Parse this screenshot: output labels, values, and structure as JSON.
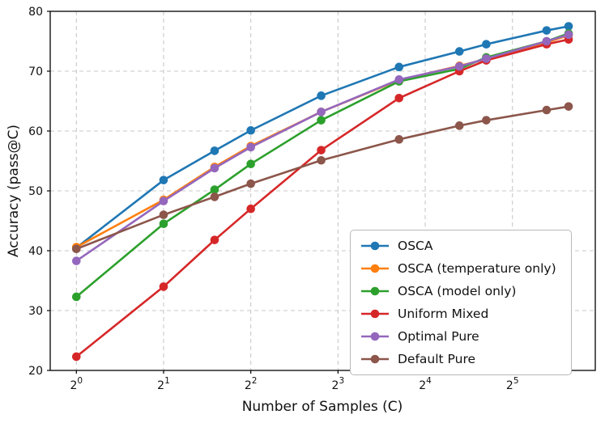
{
  "chart_data": {
    "type": "line",
    "title": "",
    "xlabel": "Number of Samples (C)",
    "ylabel": "Accuracy (pass@C)",
    "x_scale": "log2",
    "x_tick_base": "2",
    "xticks_exp": [
      0,
      1,
      2,
      3,
      4,
      5
    ],
    "x_log2": [
      0,
      1,
      1.585,
      2,
      2.807,
      3.7,
      4.392,
      4.7,
      5.392,
      5.644
    ],
    "x_values_approx": [
      1,
      2,
      3,
      4,
      7,
      13,
      21,
      26,
      42,
      50
    ],
    "x_lim_log2": [
      -0.3,
      5.95
    ],
    "ylim": [
      20,
      80
    ],
    "yticks": [
      20,
      30,
      40,
      50,
      60,
      70,
      80
    ],
    "grid": "dashed",
    "legend_position": "lower right",
    "series": [
      {
        "name": "OSCA",
        "color": "#1f77b4",
        "values": [
          40.5,
          51.8,
          56.7,
          60.1,
          65.9,
          70.7,
          73.3,
          74.5,
          76.8,
          77.5
        ]
      },
      {
        "name": "OSCA (temperature only)",
        "color": "#ff7f0e",
        "values": [
          40.6,
          48.5,
          54.0,
          57.5,
          63.2,
          68.5,
          70.9,
          72.0,
          74.8,
          76.0
        ]
      },
      {
        "name": "OSCA (model only)",
        "color": "#2ca02c",
        "values": [
          32.3,
          44.5,
          50.2,
          54.5,
          61.8,
          68.3,
          70.4,
          72.3,
          75.0,
          76.3
        ]
      },
      {
        "name": "Uniform Mixed",
        "color": "#d62728",
        "values": [
          22.3,
          34.0,
          41.8,
          47.0,
          56.8,
          65.5,
          70.0,
          71.8,
          74.5,
          75.3
        ]
      },
      {
        "name": "Optimal Pure",
        "color": "#9467bd",
        "values": [
          38.3,
          48.3,
          53.8,
          57.3,
          63.2,
          68.6,
          70.8,
          72.1,
          75.0,
          76.1
        ]
      },
      {
        "name": "Default Pure",
        "color": "#8c564b",
        "values": [
          40.3,
          46.0,
          49.0,
          51.2,
          55.1,
          58.6,
          60.9,
          61.8,
          63.5,
          64.1
        ]
      }
    ]
  }
}
